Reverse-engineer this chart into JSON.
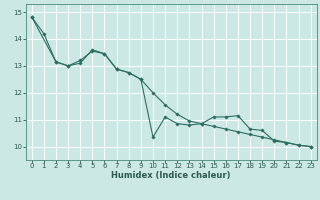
{
  "xlabel": "Humidex (Indice chaleur)",
  "background_color": "#cce8e4",
  "grid_color": "#ffffff",
  "line_color": "#2d6e62",
  "xlim": [
    -0.5,
    23.5
  ],
  "ylim": [
    9.5,
    15.3
  ],
  "yticks": [
    10,
    11,
    12,
    13,
    14,
    15
  ],
  "xticks": [
    0,
    1,
    2,
    3,
    4,
    5,
    6,
    7,
    8,
    9,
    10,
    11,
    12,
    13,
    14,
    15,
    16,
    17,
    18,
    19,
    20,
    21,
    22,
    23
  ],
  "line1_x": [
    0,
    1,
    2,
    3,
    4,
    5,
    6,
    7,
    8,
    9,
    10,
    11,
    12,
    13,
    14,
    15,
    16,
    17,
    18,
    19,
    20,
    21,
    22,
    23
  ],
  "line1_y": [
    14.82,
    14.2,
    13.15,
    13.0,
    13.2,
    13.55,
    13.45,
    12.88,
    12.75,
    12.5,
    10.35,
    11.1,
    10.85,
    10.8,
    10.85,
    11.1,
    11.1,
    11.15,
    10.65,
    10.6,
    10.2,
    10.15,
    10.05,
    10.0
  ],
  "line2_x": [
    0,
    2,
    3,
    4,
    5,
    6,
    7,
    8,
    9,
    10,
    11,
    12,
    13,
    14,
    15,
    16,
    17,
    18,
    19,
    20,
    21,
    22,
    23
  ],
  "line2_y": [
    14.82,
    13.15,
    13.0,
    13.1,
    13.6,
    13.45,
    12.88,
    12.75,
    12.5,
    12.0,
    11.55,
    11.2,
    10.95,
    10.85,
    10.75,
    10.65,
    10.55,
    10.45,
    10.35,
    10.25,
    10.15,
    10.05,
    10.0
  ],
  "tick_labelsize": 5.0,
  "xlabel_fontsize": 6.0,
  "xlabel_fontweight": "bold"
}
